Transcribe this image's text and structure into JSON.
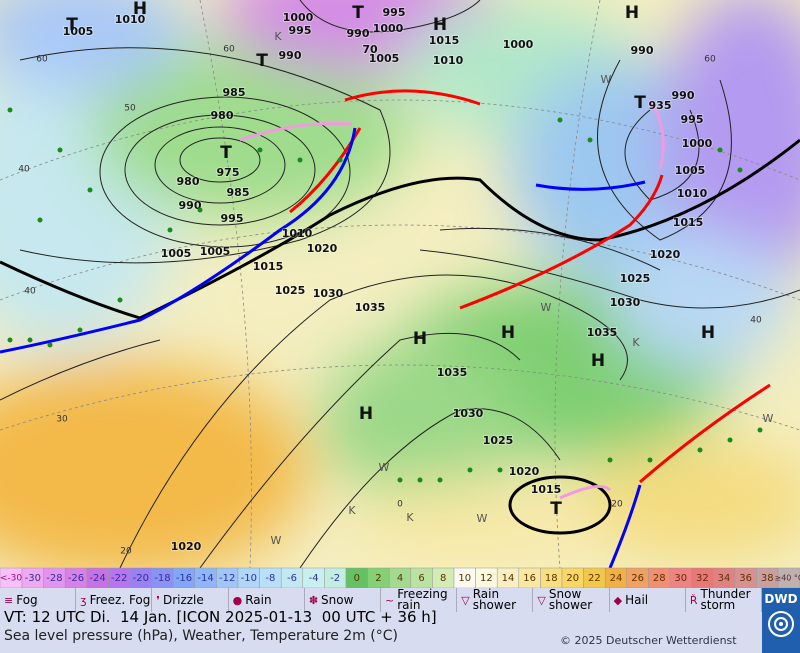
{
  "pressure_labels": [
    "1010",
    "1005",
    "1000",
    "995",
    "995",
    "990",
    "1000",
    "990",
    "70",
    "1005",
    "1015",
    "1010",
    "1000",
    "990",
    "985",
    "980",
    "975",
    "980",
    "985",
    "990",
    "995",
    "935",
    "990",
    "995",
    "1000",
    "1005",
    "1010",
    "1015",
    "1020",
    "1025",
    "1030",
    "1035",
    "1010",
    "1020",
    "1005",
    "1005",
    "1015",
    "1025",
    "1030",
    "1035",
    "1035",
    "1030",
    "1025",
    "1020",
    "1015",
    "1020"
  ],
  "centers": [
    "H",
    "T",
    "T",
    "H",
    "T",
    "T",
    "H",
    "T",
    "H",
    "H",
    "H",
    "H",
    "H",
    "T"
  ],
  "grid_labels": [
    "60",
    "50",
    "40",
    "40",
    "30",
    "20",
    "60",
    "60",
    "40",
    "20",
    "0"
  ],
  "region_marks": [
    "K",
    "K",
    "K",
    "W",
    "W",
    "W",
    "W",
    "K",
    "W",
    "W"
  ],
  "scale": {
    "below": "<-30",
    "steps": [
      -30,
      -28,
      -26,
      -24,
      -22,
      -20,
      -18,
      -16,
      -14,
      -12,
      -10,
      -8,
      -6,
      -4,
      -2,
      0,
      2,
      4,
      6,
      8,
      10,
      12,
      14,
      16,
      18,
      20,
      22,
      24,
      26,
      28,
      30,
      32,
      34,
      36,
      38
    ],
    "colors": [
      "#f0a8f0",
      "#e494ec",
      "#d880e6",
      "#c870e4",
      "#b874ea",
      "#9a80f0",
      "#8a92f2",
      "#84a6f6",
      "#90b6f8",
      "#a0c6f8",
      "#b0d6f8",
      "#b8e0f6",
      "#c2e8f2",
      "#c8f0ee",
      "#c2eee0",
      "#64c264",
      "#84d074",
      "#a2da8e",
      "#bae2a2",
      "#d2ecb4",
      "#fafaf0",
      "#fafae0",
      "#f8f0c2",
      "#f8e8a2",
      "#f8e082",
      "#f8d862",
      "#f2c84a",
      "#f0b044",
      "#f0a060",
      "#f09070",
      "#ef8282",
      "#e87878",
      "#e08282",
      "#d89090",
      "#c8a0a0"
    ],
    "above": "≥40 °C"
  },
  "legend": [
    "Fog",
    "Freez. Fog",
    "Drizzle",
    "Rain",
    "Snow",
    "Freezing rain",
    "Rain shower",
    "Snow shower",
    "Hail",
    "Thunder storm"
  ],
  "footer": {
    "valid_time": "VT: 12 UTC Di.  14 Jan. [ICON 2025-01-13  00 UTC + 36 h]",
    "description": "Sea level pressure (hPa), Weather, Temperature 2m (°C)",
    "copyright": "© 2025 Deutscher Wetterdienst",
    "logo": "DWD"
  }
}
